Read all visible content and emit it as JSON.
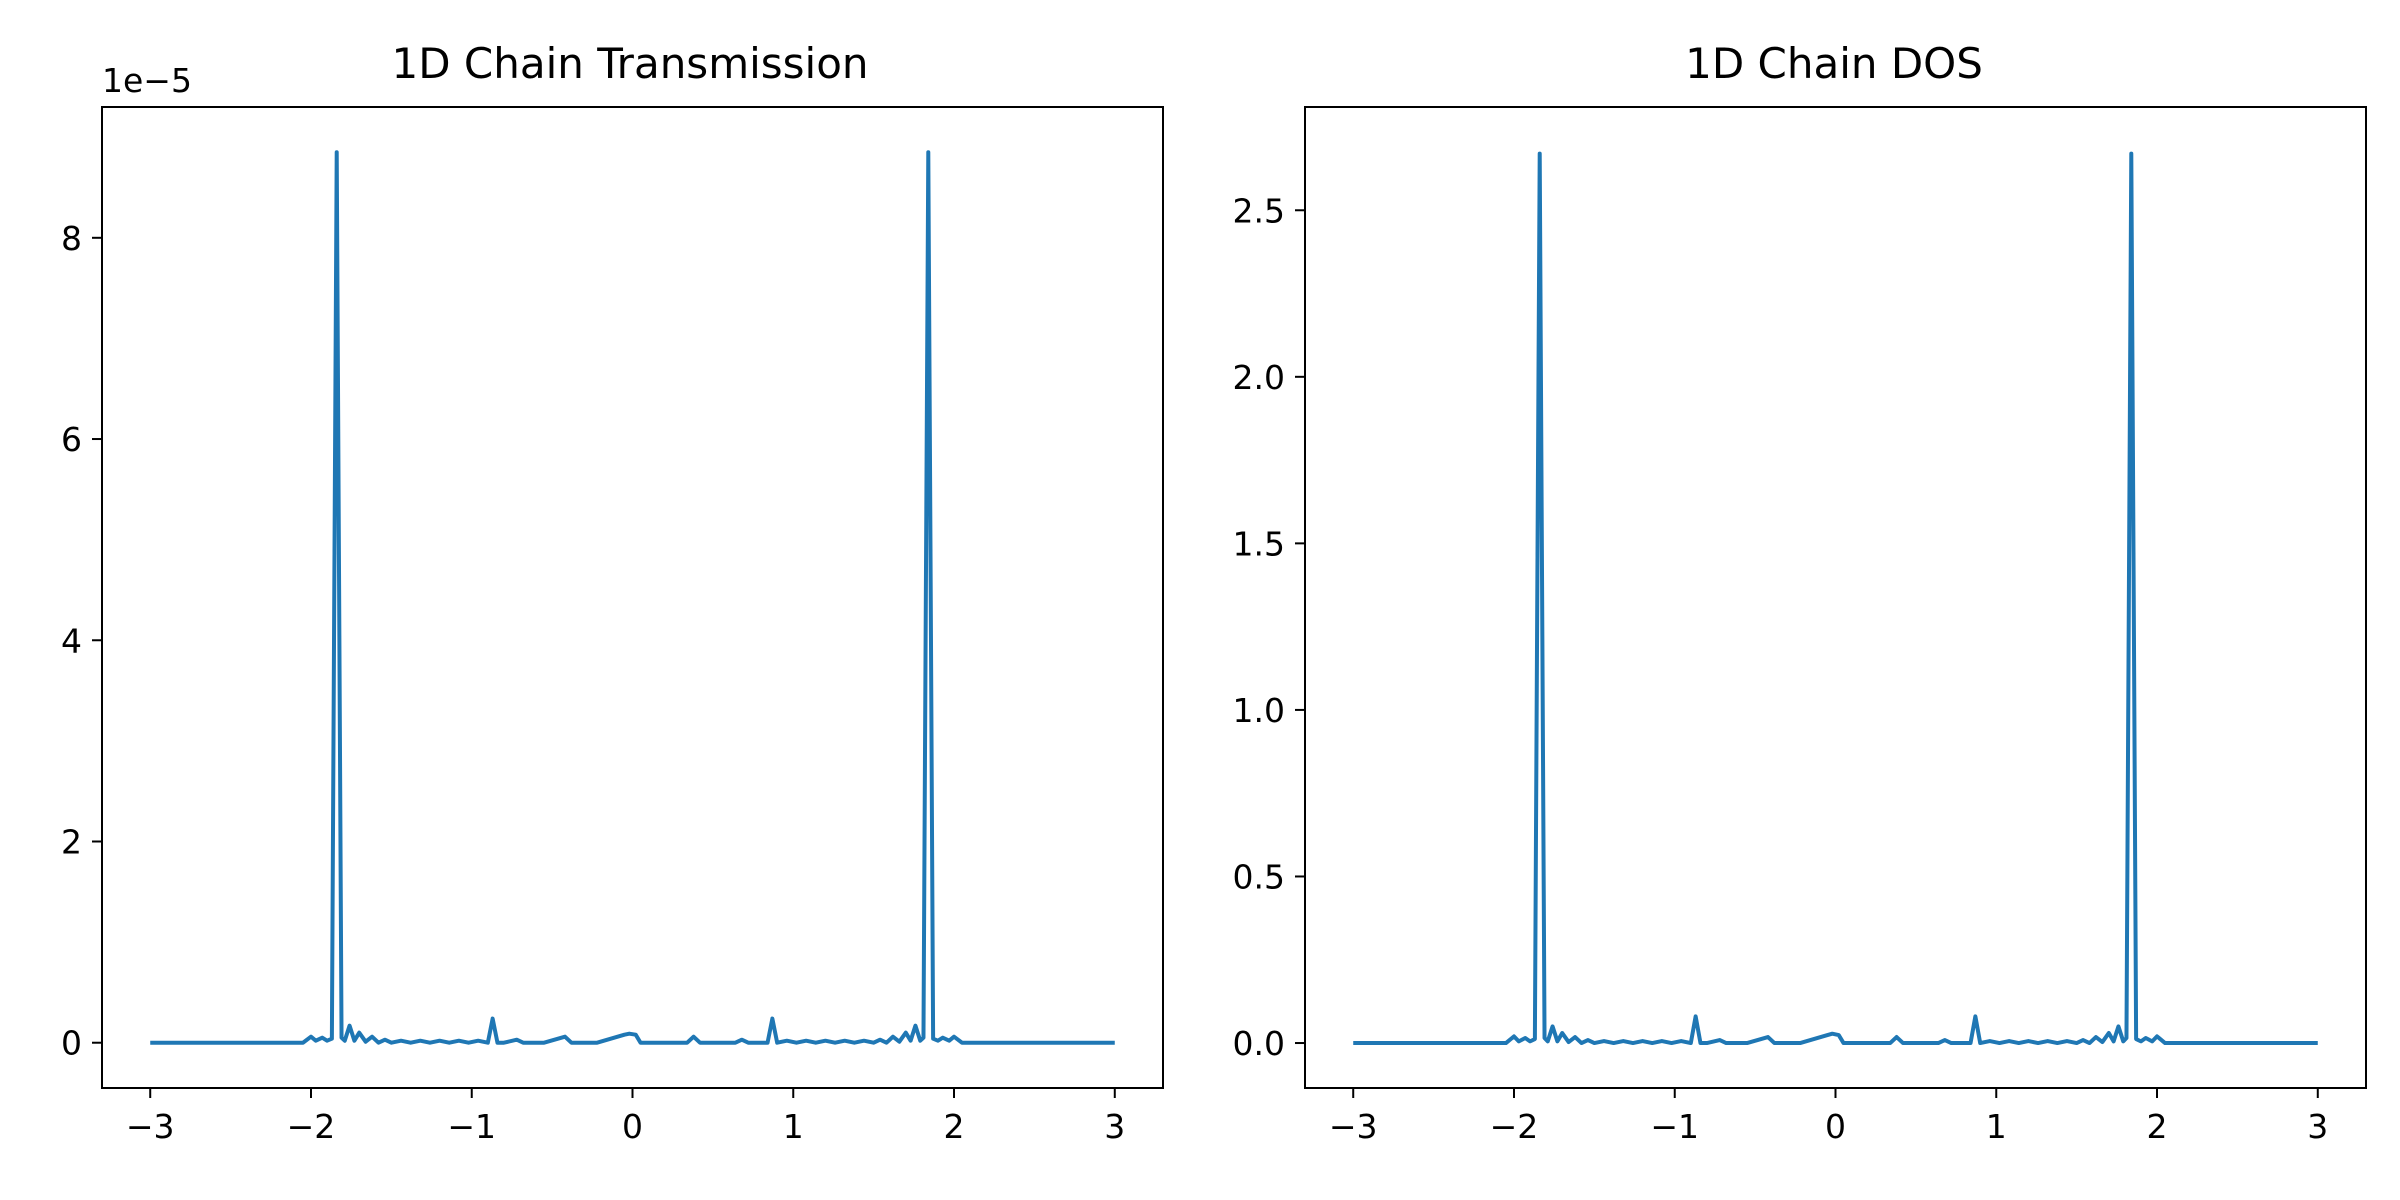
{
  "chart_data": [
    {
      "type": "line",
      "title": "1D Chain Transmission",
      "xlabel": "",
      "ylabel": "",
      "offset_label": "1e−5",
      "xlim": [
        -3.3,
        3.3
      ],
      "ylim": [
        -0.45,
        9.3
      ],
      "xticks": [
        -3,
        -2,
        -1,
        0,
        1,
        2,
        3
      ],
      "xtick_labels": [
        "−3",
        "−2",
        "−1",
        "0",
        "1",
        "2",
        "3"
      ],
      "yticks": [
        0,
        2,
        4,
        6,
        8
      ],
      "ytick_labels": [
        "0",
        "2",
        "4",
        "6",
        "8"
      ],
      "color": "#1f77b4",
      "x": [
        -3.0,
        -2.05,
        -2.0,
        -1.97,
        -1.93,
        -1.9,
        -1.87,
        -1.855,
        -1.84,
        -1.825,
        -1.81,
        -1.79,
        -1.76,
        -1.73,
        -1.7,
        -1.66,
        -1.62,
        -1.58,
        -1.54,
        -1.5,
        -1.44,
        -1.38,
        -1.32,
        -1.26,
        -1.2,
        -1.14,
        -1.08,
        -1.02,
        -0.96,
        -0.9,
        -0.87,
        -0.84,
        -0.8,
        -0.72,
        -0.68,
        -0.64,
        -0.55,
        -0.42,
        -0.38,
        -0.34,
        -0.22,
        -0.05,
        -0.02,
        0.02,
        0.05,
        0.22,
        0.34,
        0.38,
        0.42,
        0.55,
        0.64,
        0.68,
        0.72,
        0.8,
        0.84,
        0.87,
        0.9,
        0.96,
        1.02,
        1.08,
        1.14,
        1.2,
        1.26,
        1.32,
        1.38,
        1.44,
        1.5,
        1.54,
        1.58,
        1.62,
        1.66,
        1.7,
        1.73,
        1.76,
        1.79,
        1.81,
        1.825,
        1.84,
        1.855,
        1.87,
        1.9,
        1.93,
        1.97,
        2.0,
        2.05,
        3.0
      ],
      "values": [
        0.0,
        0.0,
        0.06,
        0.02,
        0.05,
        0.02,
        0.04,
        4.5,
        8.85,
        4.5,
        0.05,
        0.02,
        0.17,
        0.02,
        0.1,
        0.01,
        0.06,
        0.0,
        0.03,
        0.0,
        0.02,
        0.0,
        0.02,
        0.0,
        0.02,
        0.0,
        0.02,
        0.0,
        0.02,
        0.0,
        0.24,
        0.0,
        0.0,
        0.03,
        0.0,
        0.0,
        0.0,
        0.06,
        0.0,
        0.0,
        0.0,
        0.08,
        0.09,
        0.08,
        0.0,
        0.0,
        0.0,
        0.06,
        0.0,
        0.0,
        0.0,
        0.03,
        0.0,
        0.0,
        0.0,
        0.24,
        0.0,
        0.02,
        0.0,
        0.02,
        0.0,
        0.02,
        0.0,
        0.02,
        0.0,
        0.02,
        0.0,
        0.03,
        0.0,
        0.06,
        0.01,
        0.1,
        0.02,
        0.17,
        0.02,
        0.05,
        4.5,
        8.85,
        4.5,
        0.04,
        0.02,
        0.05,
        0.02,
        0.06,
        0.0,
        0.0
      ]
    },
    {
      "type": "line",
      "title": "1D Chain DOS",
      "xlabel": "",
      "ylabel": "",
      "xlim": [
        -3.3,
        3.3
      ],
      "ylim": [
        -0.135,
        2.81
      ],
      "xticks": [
        -3,
        -2,
        -1,
        0,
        1,
        2,
        3
      ],
      "xtick_labels": [
        "−3",
        "−2",
        "−1",
        "0",
        "1",
        "2",
        "3"
      ],
      "yticks": [
        0.0,
        0.5,
        1.0,
        1.5,
        2.0,
        2.5
      ],
      "ytick_labels": [
        "0.0",
        "0.5",
        "1.0",
        "1.5",
        "2.0",
        "2.5"
      ],
      "color": "#1f77b4",
      "x": [
        -3.0,
        -2.05,
        -2.0,
        -1.97,
        -1.93,
        -1.9,
        -1.87,
        -1.855,
        -1.84,
        -1.825,
        -1.81,
        -1.79,
        -1.76,
        -1.73,
        -1.7,
        -1.66,
        -1.62,
        -1.58,
        -1.54,
        -1.5,
        -1.44,
        -1.38,
        -1.32,
        -1.26,
        -1.2,
        -1.14,
        -1.08,
        -1.02,
        -0.96,
        -0.9,
        -0.87,
        -0.84,
        -0.8,
        -0.72,
        -0.68,
        -0.64,
        -0.55,
        -0.42,
        -0.38,
        -0.34,
        -0.22,
        -0.05,
        -0.02,
        0.02,
        0.05,
        0.22,
        0.34,
        0.38,
        0.42,
        0.55,
        0.64,
        0.68,
        0.72,
        0.8,
        0.84,
        0.87,
        0.9,
        0.96,
        1.02,
        1.08,
        1.14,
        1.2,
        1.26,
        1.32,
        1.38,
        1.44,
        1.5,
        1.54,
        1.58,
        1.62,
        1.66,
        1.7,
        1.73,
        1.76,
        1.79,
        1.81,
        1.825,
        1.84,
        1.855,
        1.87,
        1.9,
        1.93,
        1.97,
        2.0,
        2.05,
        3.0
      ],
      "values": [
        0.0,
        0.0,
        0.02,
        0.005,
        0.015,
        0.005,
        0.012,
        1.35,
        2.67,
        1.35,
        0.015,
        0.005,
        0.05,
        0.005,
        0.03,
        0.003,
        0.018,
        0.0,
        0.009,
        0.0,
        0.006,
        0.0,
        0.006,
        0.0,
        0.006,
        0.0,
        0.006,
        0.0,
        0.006,
        0.0,
        0.08,
        0.0,
        0.0,
        0.009,
        0.0,
        0.0,
        0.0,
        0.018,
        0.0,
        0.0,
        0.0,
        0.024,
        0.028,
        0.024,
        0.0,
        0.0,
        0.0,
        0.018,
        0.0,
        0.0,
        0.0,
        0.009,
        0.0,
        0.0,
        0.0,
        0.08,
        0.0,
        0.006,
        0.0,
        0.006,
        0.0,
        0.006,
        0.0,
        0.006,
        0.0,
        0.006,
        0.0,
        0.009,
        0.0,
        0.018,
        0.003,
        0.03,
        0.005,
        0.05,
        0.005,
        0.015,
        1.35,
        2.67,
        1.35,
        0.012,
        0.005,
        0.015,
        0.005,
        0.02,
        0.0,
        0.0
      ]
    }
  ]
}
